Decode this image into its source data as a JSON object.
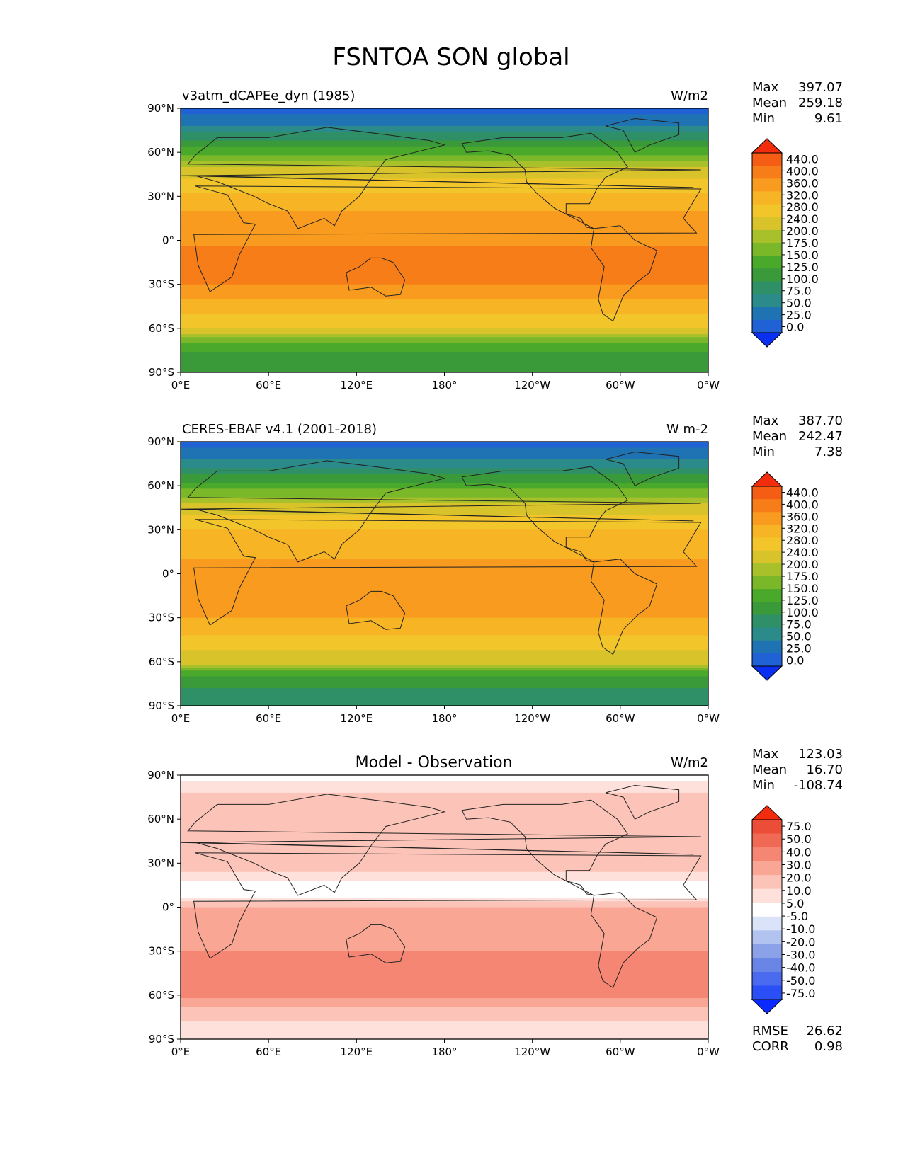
{
  "figure_title": "FSNTOA SON global",
  "colors": {
    "fill_levels": [
      "#0b2ff0",
      "#2062d6",
      "#1f73b3",
      "#2b8a8a",
      "#2f8f66",
      "#3a9a3a",
      "#4aa82a",
      "#7ab82a",
      "#a8c02a",
      "#d8c42a",
      "#f2c62a",
      "#f7b525",
      "#f89b1e",
      "#f77d18",
      "#f55c14",
      "#f22c0c"
    ],
    "diff_levels": [
      "#0a2aff",
      "#2b4ff7",
      "#4a6aef",
      "#6986e6",
      "#8ca2e8",
      "#b2c3f0",
      "#dbe3f8",
      "#ffffff",
      "#ffe1db",
      "#fcc4b8",
      "#f9a694",
      "#f68674",
      "#f06954",
      "#ec4d38",
      "#f22c0c"
    ]
  },
  "chart_data": [
    {
      "type": "heatmap",
      "panel": "test",
      "title": "v3atm_dCAPEe_dyn (1985)",
      "units": "W/m2",
      "xlabel": "",
      "ylabel": "",
      "xticks": [
        "0°E",
        "60°E",
        "120°E",
        "180°",
        "120°W",
        "60°W",
        "0°W"
      ],
      "yticks": [
        "90°N",
        "60°N",
        "30°N",
        "0°",
        "30°S",
        "60°S",
        "90°S"
      ],
      "xlim": [
        0,
        360
      ],
      "ylim": [
        -90,
        90
      ],
      "stats": [
        {
          "label": "Max",
          "value": "397.07"
        },
        {
          "label": "Mean",
          "value": "259.18"
        },
        {
          "label": "Min",
          "value": "9.61"
        }
      ],
      "colorbar": {
        "levels": [
          "440.0",
          "400.0",
          "360.0",
          "320.0",
          "280.0",
          "240.0",
          "200.0",
          "175.0",
          "150.0",
          "125.0",
          "100.0",
          "75.0",
          "50.0",
          "25.0",
          "0.0"
        ],
        "extend": "both"
      },
      "zonal_profile": {
        "lat": [
          90,
          80,
          70,
          60,
          50,
          40,
          30,
          20,
          10,
          0,
          -10,
          -20,
          -30,
          -40,
          -50,
          -60,
          -70,
          -80,
          -90
        ],
        "value": [
          18,
          40,
          90,
          140,
          195,
          250,
          290,
          320,
          345,
          355,
          365,
          370,
          360,
          320,
          280,
          240,
          140,
          110,
          100
        ]
      }
    },
    {
      "type": "heatmap",
      "panel": "reference",
      "title": "CERES-EBAF v4.1 (2001-2018)",
      "units": "W m-2",
      "xlabel": "",
      "ylabel": "",
      "xticks": [
        "0°E",
        "60°E",
        "120°E",
        "180°",
        "120°W",
        "60°W",
        "0°W"
      ],
      "yticks": [
        "90°N",
        "60°N",
        "30°N",
        "0°",
        "30°S",
        "60°S",
        "90°S"
      ],
      "xlim": [
        0,
        360
      ],
      "ylim": [
        -90,
        90
      ],
      "stats": [
        {
          "label": "Max",
          "value": "387.70"
        },
        {
          "label": "Mean",
          "value": "242.47"
        },
        {
          "label": "Min",
          "value": "7.38"
        }
      ],
      "colorbar": {
        "levels": [
          "440.0",
          "400.0",
          "360.0",
          "320.0",
          "280.0",
          "240.0",
          "200.0",
          "175.0",
          "150.0",
          "125.0",
          "100.0",
          "75.0",
          "50.0",
          "25.0",
          "0.0"
        ],
        "extend": "both"
      },
      "zonal_profile": {
        "lat": [
          90,
          80,
          70,
          60,
          50,
          40,
          30,
          20,
          10,
          0,
          -10,
          -20,
          -30,
          -40,
          -50,
          -60,
          -70,
          -80,
          -90
        ],
        "value": [
          16,
          38,
          85,
          135,
          190,
          245,
          280,
          300,
          320,
          330,
          340,
          335,
          320,
          290,
          250,
          210,
          120,
          95,
          90
        ]
      }
    },
    {
      "type": "heatmap",
      "panel": "difference",
      "title": "Model - Observation",
      "units": "W/m2",
      "xlabel": "",
      "ylabel": "",
      "xticks": [
        "0°E",
        "60°E",
        "120°E",
        "180°",
        "120°W",
        "60°W",
        "0°W"
      ],
      "yticks": [
        "90°N",
        "60°N",
        "30°N",
        "0°",
        "30°S",
        "60°S",
        "90°S"
      ],
      "xlim": [
        0,
        360
      ],
      "ylim": [
        -90,
        90
      ],
      "stats": [
        {
          "label": "Max",
          "value": "123.03"
        },
        {
          "label": "Mean",
          "value": "16.70"
        },
        {
          "label": "Min",
          "value": "-108.74"
        }
      ],
      "bottom_stats": [
        {
          "label": "RMSE",
          "value": "26.62"
        },
        {
          "label": "CORR",
          "value": "0.98"
        }
      ],
      "colorbar": {
        "levels": [
          "75.0",
          "50.0",
          "40.0",
          "30.0",
          "20.0",
          "10.0",
          "5.0",
          "-5.0",
          "-10.0",
          "-20.0",
          "-30.0",
          "-40.0",
          "-50.0",
          "-75.0"
        ],
        "extend": "both"
      },
      "zonal_profile": {
        "lat": [
          90,
          80,
          70,
          60,
          50,
          40,
          30,
          20,
          10,
          0,
          -10,
          -20,
          -30,
          -40,
          -50,
          -60,
          -70,
          -80,
          -90
        ],
        "value": [
          3,
          8,
          15,
          18,
          20,
          15,
          12,
          8,
          -5,
          20,
          28,
          20,
          30,
          35,
          40,
          35,
          15,
          8,
          5
        ]
      }
    }
  ]
}
